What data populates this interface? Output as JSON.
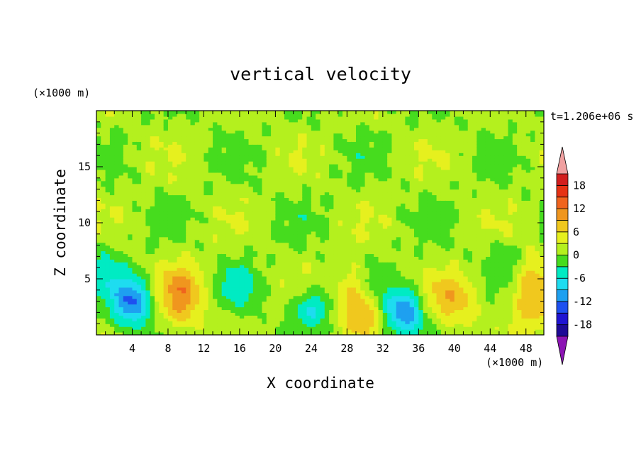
{
  "chart_data": {
    "type": "heatmap",
    "title": "vertical velocity",
    "xlabel": "X coordinate",
    "ylabel": "Z coordinate",
    "x_unit": "(×1000 m)",
    "y_unit": "(×1000 m)",
    "time_label": "t=1.206e+06 s",
    "xlim": [
      0,
      50
    ],
    "ylim": [
      0,
      20
    ],
    "x_ticks": [
      "4",
      "8",
      "12",
      "16",
      "20",
      "24",
      "28",
      "32",
      "36",
      "40",
      "44",
      "48"
    ],
    "y_ticks": [
      "5",
      "10",
      "15"
    ],
    "colorbar": {
      "ticks": [
        "18",
        "12",
        "6",
        "0",
        "-6",
        "-12",
        "-18"
      ],
      "levels": [
        -21,
        -18,
        -15,
        -12,
        -9,
        -6,
        -3,
        0,
        3,
        6,
        9,
        12,
        15,
        18,
        21
      ],
      "colors": [
        "#5a0aa0",
        "#1e0a96",
        "#2014d2",
        "#1e50f0",
        "#1ea0f0",
        "#1edcf0",
        "#00ebc3",
        "#46dc1e",
        "#b4f01e",
        "#e6f01e",
        "#f0c81e",
        "#f0961e",
        "#f0641e",
        "#e63214",
        "#d21e1e",
        "#f0a0a0"
      ],
      "under_color": "#8c14b4",
      "over_color": "#f0a0a0"
    },
    "background_value": 0,
    "features": [
      {
        "x": 4,
        "z": 3,
        "w": -13,
        "sx": 1.6,
        "sz": 1.6
      },
      {
        "x": 9.5,
        "z": 3.5,
        "w": 9,
        "sx": 1.8,
        "sz": 2.0
      },
      {
        "x": 16,
        "z": 4.5,
        "w": -4,
        "sx": 1.5,
        "sz": 1.5
      },
      {
        "x": 24,
        "z": 2.5,
        "w": -8,
        "sx": 1.5,
        "sz": 1.2
      },
      {
        "x": 28.5,
        "z": 3.2,
        "w": 8,
        "sx": 1.2,
        "sz": 2.0
      },
      {
        "x": 30.3,
        "z": 1.8,
        "w": 6,
        "sx": 1.0,
        "sz": 1.2
      },
      {
        "x": 34.5,
        "z": 2.2,
        "w": -13,
        "sx": 1.5,
        "sz": 1.5
      },
      {
        "x": 40,
        "z": 3.2,
        "w": 7,
        "sx": 2.2,
        "sz": 1.6
      },
      {
        "x": 48.5,
        "z": 3.5,
        "w": 8,
        "sx": 1.5,
        "sz": 2.5
      },
      {
        "x": 1,
        "z": 6,
        "w": -4,
        "sx": 1.2,
        "sz": 1.5
      },
      {
        "x": 46,
        "z": 7,
        "w": -3,
        "sx": 1.5,
        "sz": 1.2
      }
    ],
    "grid": false
  }
}
